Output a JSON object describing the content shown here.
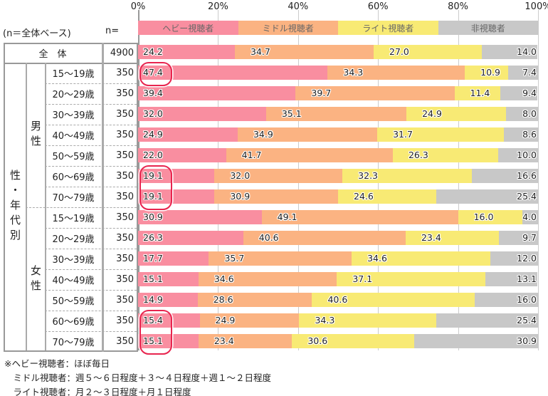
{
  "chart_data": {
    "type": "bar",
    "stacked": true,
    "orientation": "horizontal",
    "xlim": [
      0,
      100
    ],
    "x_ticks": [
      "0%",
      "20%",
      "40%",
      "60%",
      "80%",
      "100%"
    ],
    "grid": true,
    "legend_position": "top",
    "base_note": "(n＝全体ベース)",
    "n_header": "n=",
    "series": [
      {
        "name": "ヘビー視聴者",
        "color": "#f98ea0"
      },
      {
        "name": "ミドル視聴者",
        "color": "#fbb382"
      },
      {
        "name": "ライト視聴者",
        "color": "#f8ea74"
      },
      {
        "name": "非視聴者",
        "color": "#c8c8c8"
      }
    ],
    "group_label": "性・年代別",
    "sex_labels": [
      "男性",
      "女性"
    ],
    "total_label": "全　体",
    "rows": [
      {
        "label": "全　体",
        "n": "4900",
        "values": [
          24.2,
          34.7,
          27.0,
          14.0
        ]
      },
      {
        "group": "男性",
        "label": "15～19歳",
        "n": "350",
        "values": [
          47.4,
          34.3,
          10.9,
          7.4
        ]
      },
      {
        "group": "男性",
        "label": "20～29歳",
        "n": "350",
        "values": [
          39.4,
          39.7,
          11.4,
          9.4
        ]
      },
      {
        "group": "男性",
        "label": "30～39歳",
        "n": "350",
        "values": [
          32.0,
          35.1,
          24.9,
          8.0
        ]
      },
      {
        "group": "男性",
        "label": "40～49歳",
        "n": "350",
        "values": [
          24.9,
          34.9,
          31.7,
          8.6
        ]
      },
      {
        "group": "男性",
        "label": "50～59歳",
        "n": "350",
        "values": [
          22.0,
          41.7,
          26.3,
          10.0
        ]
      },
      {
        "group": "男性",
        "label": "60～69歳",
        "n": "350",
        "values": [
          19.1,
          32.0,
          32.3,
          16.6
        ]
      },
      {
        "group": "男性",
        "label": "70～79歳",
        "n": "350",
        "values": [
          19.1,
          30.9,
          24.6,
          25.4
        ]
      },
      {
        "group": "女性",
        "label": "15～19歳",
        "n": "350",
        "values": [
          30.9,
          49.1,
          16.0,
          4.0
        ]
      },
      {
        "group": "女性",
        "label": "20～29歳",
        "n": "350",
        "values": [
          26.3,
          40.6,
          23.4,
          9.7
        ]
      },
      {
        "group": "女性",
        "label": "30～39歳",
        "n": "350",
        "values": [
          17.7,
          35.7,
          34.6,
          12.0
        ]
      },
      {
        "group": "女性",
        "label": "40～49歳",
        "n": "350",
        "values": [
          15.1,
          34.6,
          37.1,
          13.1
        ]
      },
      {
        "group": "女性",
        "label": "50～59歳",
        "n": "350",
        "values": [
          14.9,
          28.6,
          40.6,
          16.0
        ]
      },
      {
        "group": "女性",
        "label": "60～69歳",
        "n": "350",
        "values": [
          15.4,
          24.9,
          34.3,
          25.4
        ]
      },
      {
        "group": "女性",
        "label": "70～79歳",
        "n": "350",
        "values": [
          15.1,
          23.4,
          30.6,
          30.9
        ]
      }
    ],
    "highlight_color": "#e8254f",
    "highlights": [
      [
        1
      ],
      [
        6,
        7
      ],
      [
        13,
        14
      ]
    ],
    "footnotes": [
      "※ヘビー視聴者：ほぼ毎日",
      "　ミドル視聴者：週５～６日程度＋３～４日程度＋週１～２日程度",
      "　ライト視聴者：月２～３日程度＋月１日程度"
    ]
  }
}
